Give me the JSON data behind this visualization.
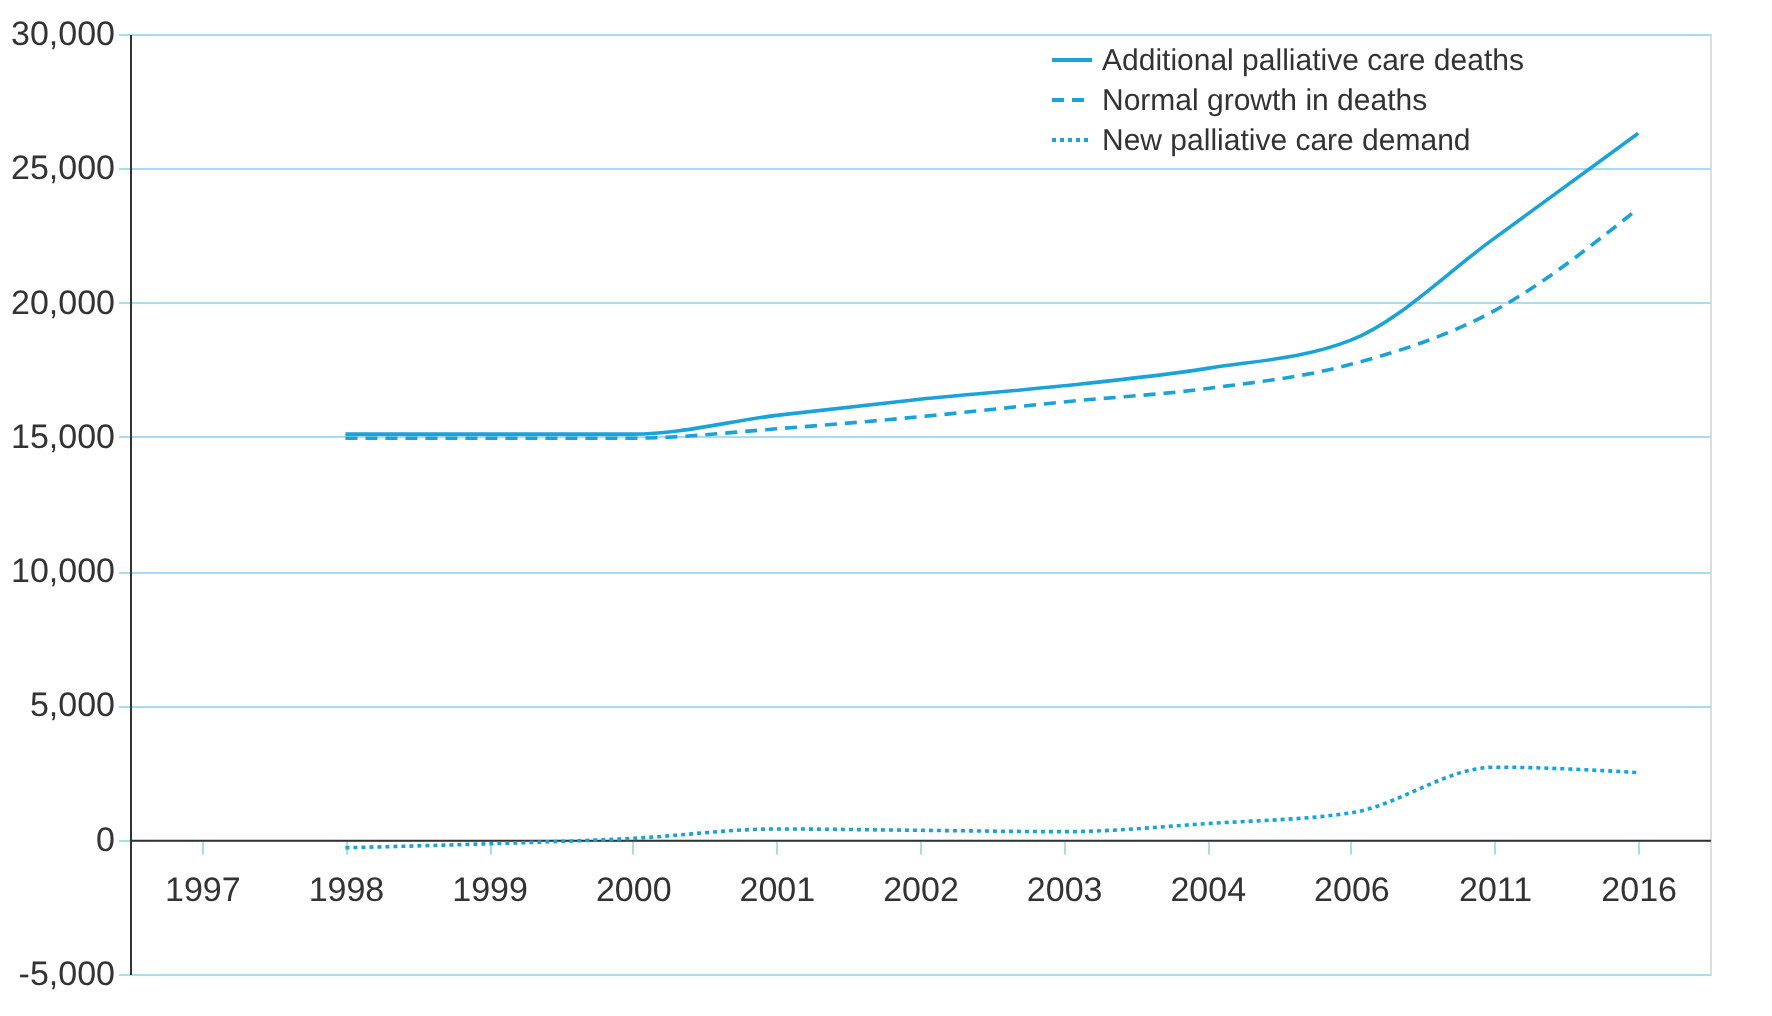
{
  "chart_data": {
    "type": "line",
    "categories": [
      "1997",
      "1998",
      "1999",
      "2000",
      "2001",
      "2002",
      "2003",
      "2004",
      "2006",
      "2011",
      "2016"
    ],
    "series": [
      {
        "name": "Additional palliative care deaths",
        "color": "#1aa3d9",
        "line_style": "solid",
        "values": [
          null,
          15100,
          15100,
          15100,
          15800,
          16400,
          16900,
          17550,
          18600,
          22400,
          26300
        ]
      },
      {
        "name": "Normal growth in deaths",
        "color": "#1aa3d9",
        "line_style": "dashed",
        "values": [
          null,
          14950,
          14950,
          14950,
          15300,
          15750,
          16300,
          16800,
          17700,
          19700,
          23500
        ]
      },
      {
        "name": "New palliative care demand",
        "color": "#1aa3d9",
        "line_style": "dotted",
        "values": [
          null,
          -300,
          -150,
          50,
          400,
          350,
          300,
          600,
          1000,
          2700,
          2500
        ]
      }
    ],
    "ylim": [
      -5000,
      30000
    ],
    "yticks": [
      {
        "value": -5000,
        "label": "-5,000"
      },
      0,
      {
        "value": 5000,
        "label": "5,000"
      },
      {
        "value": 10000,
        "label": "10,000"
      },
      {
        "value": 15000,
        "label": "15,000"
      },
      {
        "value": 20000,
        "label": "20,000"
      },
      {
        "value": 25000,
        "label": "25,000"
      },
      {
        "value": 30000,
        "label": "30,000"
      }
    ],
    "grid": "y",
    "legend": "top right",
    "marker": "none"
  }
}
